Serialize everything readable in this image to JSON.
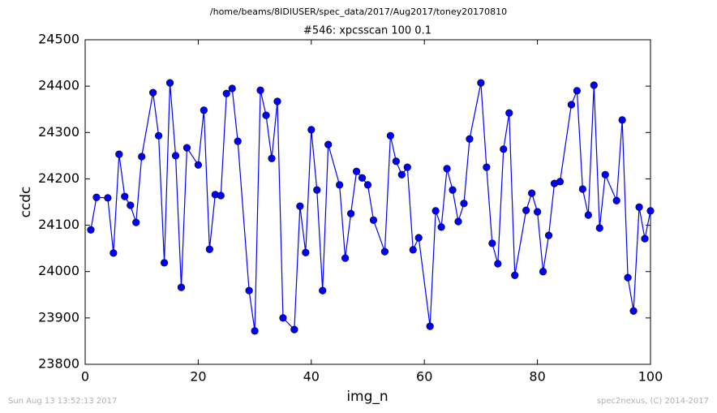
{
  "chart_data": {
    "type": "line",
    "suptitle": "/home/beams/8IDIUSER/spec_data/2017/Aug2017/toney20170810",
    "title": "#546: xpcsscan 100 0.1",
    "xlabel": "img_n",
    "ylabel": "ccdc",
    "x": [
      1,
      2,
      4,
      5,
      6,
      7,
      8,
      9,
      10,
      12,
      13,
      14,
      15,
      16,
      17,
      18,
      20,
      21,
      22,
      23,
      24,
      25,
      26,
      27,
      29,
      30,
      31,
      32,
      33,
      34,
      35,
      37,
      38,
      39,
      40,
      41,
      42,
      43,
      45,
      46,
      47,
      48,
      49,
      50,
      51,
      53,
      54,
      55,
      56,
      57,
      58,
      59,
      61,
      62,
      63,
      64,
      65,
      66,
      67,
      68,
      70,
      71,
      72,
      73,
      74,
      75,
      76,
      78,
      79,
      80,
      81,
      82,
      83,
      84,
      86,
      87,
      88,
      89,
      90,
      91,
      92,
      94,
      95,
      96,
      97,
      98,
      99,
      100
    ],
    "series": [
      {
        "name": "ccdc",
        "color": "#0000ff",
        "values": [
          24090,
          24160,
          24159,
          24040,
          24253,
          24162,
          24143,
          24106,
          24248,
          24386,
          24293,
          24019,
          24407,
          24250,
          23966,
          24267,
          24230,
          24348,
          24048,
          24166,
          24164,
          24384,
          24395,
          24281,
          23959,
          23872,
          24391,
          24337,
          24244,
          24367,
          23900,
          23875,
          24141,
          24041,
          24306,
          24176,
          23959,
          24274,
          24187,
          24029,
          24125,
          24216,
          24202,
          24187,
          24111,
          24043,
          24293,
          24238,
          24209,
          24225,
          24047,
          24073,
          23882,
          24131,
          24096,
          24222,
          24176,
          24108,
          24147,
          24286,
          24407,
          24225,
          24061,
          24017,
          24264,
          24342,
          23992,
          24132,
          24169,
          24129,
          24000,
          24078,
          24190,
          24194,
          24360,
          24390,
          24178,
          24122,
          24402,
          24094,
          24209,
          24153,
          24327,
          23987,
          23915,
          24139,
          24071,
          24131
        ]
      }
    ],
    "xlim": [
      0,
      100
    ],
    "xticks": [
      0,
      20,
      40,
      60,
      80,
      100
    ],
    "ylim": [
      23800,
      24500
    ],
    "yticks": [
      23800,
      23900,
      24000,
      24100,
      24200,
      24300,
      24400,
      24500
    ],
    "grid": false,
    "footer_left": "Sun Aug 13 13:52:13 2017",
    "footer_right": "spec2nexus, (C) 2014-2017"
  }
}
